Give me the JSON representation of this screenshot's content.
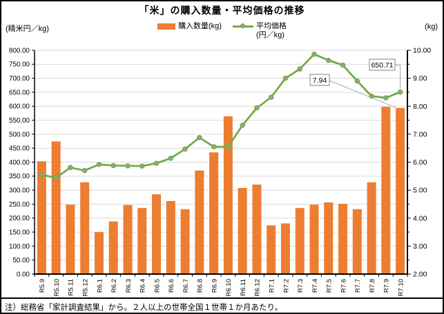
{
  "header": {
    "title": "「米」の購入数量・平均価格の推移"
  },
  "legend": {
    "quantity_label": "購入数量(kg)",
    "price_label_line1": "平均価格",
    "price_label_line2": "(円／kg)"
  },
  "axis_labels": {
    "left_unit": "(精米円／kg)",
    "right_unit": "(kg)"
  },
  "note": "注）総務省「家計調査結果」から。２人以上の世帯全国１世帯１か月あたり。",
  "chart_data": {
    "type": "bar+line",
    "title": "「米」の購入数量・平均価格の推移",
    "categories": [
      "R5.9",
      "R5.10",
      "R5.11",
      "R5.12",
      "R6.1",
      "R6.2",
      "R6.3",
      "R6.4",
      "R6.5",
      "R6.6",
      "R6.7",
      "R6.8",
      "R6.9",
      "R6.10",
      "R6.11",
      "R6.12",
      "R7.1",
      "R7.2",
      "R7.3",
      "R7.4",
      "R7.5",
      "R7.6",
      "R7.7",
      "R7.8",
      "R7.9",
      "R7.10"
    ],
    "series": [
      {
        "name": "購入数量(kg)",
        "type": "bar",
        "axis": "right",
        "unit": "kg",
        "color": "#ED7D31",
        "values": [
          6.03,
          6.74,
          4.48,
          5.28,
          3.5,
          3.88,
          4.47,
          4.36,
          4.85,
          4.61,
          4.32,
          5.7,
          6.35,
          7.64,
          5.08,
          5.2,
          3.74,
          3.81,
          4.36,
          4.48,
          4.56,
          4.51,
          4.32,
          5.28,
          7.98,
          7.94
        ]
      },
      {
        "name": "平均価格(円／kg)",
        "type": "line",
        "axis": "left",
        "unit": "円/kg",
        "color": "#70AD47",
        "marker_fill": "#97A284",
        "values": [
          355,
          344,
          381,
          370,
          392,
          388,
          387,
          386,
          396,
          414,
          447,
          488,
          455,
          455,
          532,
          594,
          632,
          700,
          733,
          786,
          764,
          747,
          690,
          636,
          630,
          650.71
        ]
      }
    ],
    "left_axis": {
      "label": "(精米円／kg)",
      "min": 0,
      "max": 800,
      "step": 50,
      "decimals": 2
    },
    "right_axis": {
      "label": "(kg)",
      "min": 2,
      "max": 10,
      "label_step": 1,
      "tick_step": 0.5,
      "decimals": 2
    },
    "grid": true,
    "gridline_color": "#D9D9D9",
    "legend_position": "top",
    "annotations": [
      {
        "text": "7.94",
        "series": 0,
        "category": "R7.10",
        "value": 7.94
      },
      {
        "text": "650.71",
        "series": 1,
        "category": "R7.10",
        "value": 650.71
      }
    ]
  }
}
